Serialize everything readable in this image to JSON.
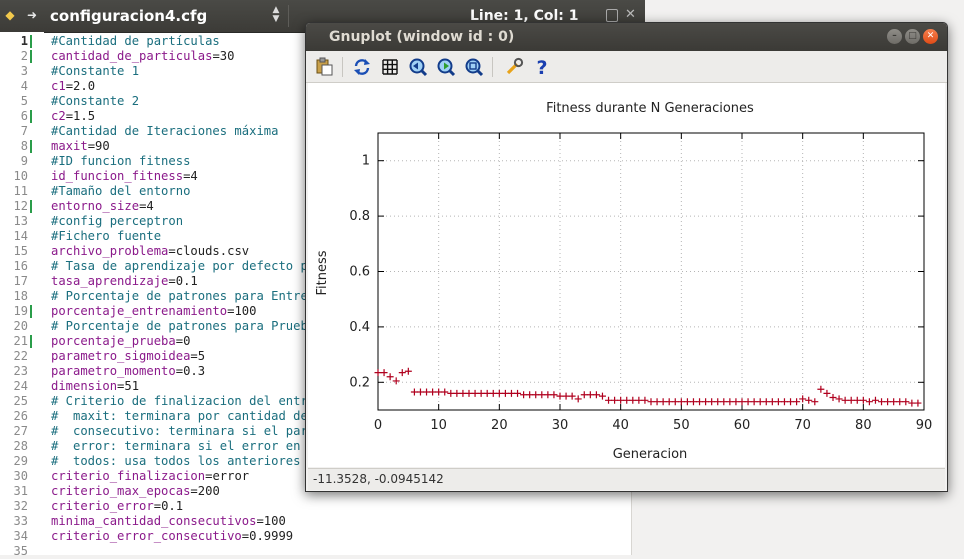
{
  "editor": {
    "filename": "configuracion4.cfg",
    "position": "Line: 1, Col: 1",
    "current_line": 1,
    "changed_lines": [
      1,
      2,
      6,
      8,
      12,
      19,
      21
    ],
    "lines": [
      {
        "n": 1,
        "type": "comment",
        "text": "#Cantidad de partículas"
      },
      {
        "n": 2,
        "type": "kv",
        "key": "cantidad_de_particulas",
        "value": "30"
      },
      {
        "n": 3,
        "type": "comment",
        "text": "#Constante 1"
      },
      {
        "n": 4,
        "type": "kv",
        "key": "c1",
        "value": "2.0"
      },
      {
        "n": 5,
        "type": "comment",
        "text": "#Constante 2"
      },
      {
        "n": 6,
        "type": "kv",
        "key": "c2",
        "value": "1.5"
      },
      {
        "n": 7,
        "type": "comment",
        "text": "#Cantidad de Iteraciones máxima"
      },
      {
        "n": 8,
        "type": "kv",
        "key": "maxit",
        "value": "90"
      },
      {
        "n": 9,
        "type": "comment",
        "text": "#ID funcion fitness"
      },
      {
        "n": 10,
        "type": "kv",
        "key": "id_funcion_fitness",
        "value": "4"
      },
      {
        "n": 11,
        "type": "comment",
        "text": "#Tamaño del entorno"
      },
      {
        "n": 12,
        "type": "kv",
        "key": "entorno_size",
        "value": "4"
      },
      {
        "n": 13,
        "type": "comment",
        "text": "#config perceptron"
      },
      {
        "n": 14,
        "type": "comment",
        "text": "#Fichero fuente"
      },
      {
        "n": 15,
        "type": "kv",
        "key": "archivo_problema",
        "value": "clouds.csv"
      },
      {
        "n": 16,
        "type": "comment",
        "text": "# Tasa de aprendizaje por defecto par"
      },
      {
        "n": 17,
        "type": "kv",
        "key": "tasa_aprendizaje",
        "value": "0.1"
      },
      {
        "n": 18,
        "type": "comment",
        "text": "# Porcentaje de patrones para Entrena"
      },
      {
        "n": 19,
        "type": "kv",
        "key": "porcentaje_entrenamiento",
        "value": "100"
      },
      {
        "n": 20,
        "type": "comment",
        "text": "# Porcentaje de patrones para Prueba"
      },
      {
        "n": 21,
        "type": "kv",
        "key": "porcentaje_prueba",
        "value": "0"
      },
      {
        "n": 22,
        "type": "kv",
        "key": "parametro_sigmoidea",
        "value": "5"
      },
      {
        "n": 23,
        "type": "kv",
        "key": "parametro_momento",
        "value": "0.3"
      },
      {
        "n": 24,
        "type": "kv",
        "key": "dimension",
        "value": "51"
      },
      {
        "n": 25,
        "type": "comment",
        "text": "# Criterio de finalizacion del entren"
      },
      {
        "n": 26,
        "type": "comment",
        "text": "#  maxit: terminara por cantidad de i"
      },
      {
        "n": 27,
        "type": "comment",
        "text": "#  consecutivo: terminara si el pared"
      },
      {
        "n": 28,
        "type": "comment",
        "text": "#  error: terminara si el error en un"
      },
      {
        "n": 29,
        "type": "comment",
        "text": "#  todos: usa todos los anteriores y"
      },
      {
        "n": 30,
        "type": "kv",
        "key": "criterio_finalizacion",
        "value": "error"
      },
      {
        "n": 31,
        "type": "kv",
        "key": "criterio_max_epocas",
        "value": "200"
      },
      {
        "n": 32,
        "type": "kv",
        "key": "criterio_error",
        "value": "0.1"
      },
      {
        "n": 33,
        "type": "kv",
        "key": "minima_cantidad_consecutivos",
        "value": "100"
      },
      {
        "n": 34,
        "type": "kv",
        "key": "criterio_error_consecutivo",
        "value": "0.9999"
      },
      {
        "n": 35,
        "type": "empty",
        "text": ""
      }
    ]
  },
  "gnuplot": {
    "window_title": "Gnuplot (window id : 0)",
    "status": "-11.3528, -0.0945142",
    "toolbar": [
      "copy-clipboard-icon",
      "replot-icon",
      "grid-icon",
      "zoom-prev-icon",
      "zoom-next-icon",
      "autoscale-icon",
      "config-icon",
      "help-icon"
    ]
  },
  "chart_data": {
    "type": "scatter",
    "title": "Fitness durante N Generaciones",
    "xlabel": "Generacion",
    "ylabel": "Fitness",
    "xlim": [
      0,
      90
    ],
    "ylim": [
      0.1,
      1.1
    ],
    "xticks": [
      "0",
      "10",
      "20",
      "30",
      "40",
      "50",
      "60",
      "70",
      "80",
      "90"
    ],
    "yticks": [
      "0.2",
      "0.4",
      "0.6",
      "0.8",
      "1"
    ],
    "grid": true,
    "marker": "+",
    "color": "#b0001e",
    "series": [
      {
        "x": [
          0,
          1,
          2,
          3,
          4,
          5,
          6,
          7,
          8,
          9,
          10,
          11,
          12,
          13,
          14,
          15,
          16,
          17,
          18,
          19,
          20,
          21,
          22,
          23,
          24,
          25,
          26,
          27,
          28,
          29,
          30,
          31,
          32,
          33,
          34,
          35,
          36,
          37,
          38,
          39,
          40,
          41,
          42,
          43,
          44,
          45,
          46,
          47,
          48,
          49,
          50,
          51,
          52,
          53,
          54,
          55,
          56,
          57,
          58,
          59,
          60,
          61,
          62,
          63,
          64,
          65,
          66,
          67,
          68,
          69,
          70,
          71,
          72,
          73,
          74,
          75,
          76,
          77,
          78,
          79,
          80,
          81,
          82,
          83,
          84,
          85,
          86,
          87,
          88,
          89
        ],
        "y": [
          0.235,
          0.235,
          0.22,
          0.205,
          0.235,
          0.24,
          0.165,
          0.165,
          0.165,
          0.165,
          0.165,
          0.165,
          0.16,
          0.16,
          0.16,
          0.16,
          0.16,
          0.16,
          0.16,
          0.16,
          0.16,
          0.16,
          0.16,
          0.16,
          0.155,
          0.155,
          0.155,
          0.155,
          0.155,
          0.155,
          0.15,
          0.15,
          0.15,
          0.14,
          0.155,
          0.155,
          0.155,
          0.15,
          0.135,
          0.135,
          0.135,
          0.135,
          0.135,
          0.135,
          0.135,
          0.13,
          0.13,
          0.13,
          0.13,
          0.13,
          0.13,
          0.13,
          0.13,
          0.13,
          0.13,
          0.13,
          0.13,
          0.13,
          0.13,
          0.13,
          0.13,
          0.13,
          0.13,
          0.13,
          0.13,
          0.13,
          0.13,
          0.13,
          0.13,
          0.13,
          0.14,
          0.135,
          0.13,
          0.175,
          0.16,
          0.145,
          0.14,
          0.135,
          0.135,
          0.135,
          0.135,
          0.13,
          0.135,
          0.13,
          0.13,
          0.13,
          0.13,
          0.13,
          0.125,
          0.125
        ]
      }
    ]
  }
}
